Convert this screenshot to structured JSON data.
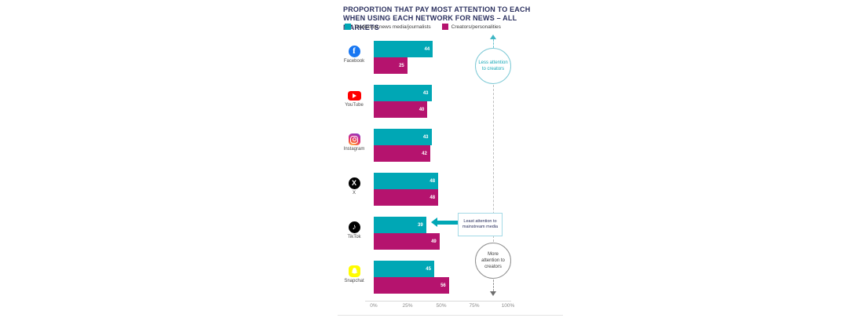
{
  "title": "PROPORTION THAT PAY MOST ATTENTION TO EACH WHEN USING EACH NETWORK FOR NEWS – ALL MARKETS",
  "legend": {
    "items": [
      {
        "label": "Traditional news media/journalists",
        "color": "#00A7B5"
      },
      {
        "label": "Creators/personalities",
        "color": "#B5136E"
      }
    ]
  },
  "chart_data": {
    "type": "bar",
    "orientation": "horizontal",
    "title": "PROPORTION THAT PAY MOST ATTENTION TO EACH WHEN USING EACH NETWORK FOR NEWS – ALL MARKETS",
    "categories": [
      "Facebook",
      "YouTube",
      "Instagram",
      "X",
      "TikTok",
      "Snapchat"
    ],
    "icons": [
      "facebook-icon",
      "youtube-icon",
      "instagram-icon",
      "x-icon",
      "tiktok-icon",
      "snapchat-icon"
    ],
    "series": [
      {
        "name": "Traditional news media/journalists",
        "color": "#00A7B5",
        "values": [
          44,
          43,
          43,
          48,
          39,
          45
        ]
      },
      {
        "name": "Creators/personalities",
        "color": "#B5136E",
        "values": [
          25,
          40,
          42,
          48,
          49,
          56
        ]
      }
    ],
    "x_ticks": [
      "0%",
      "25%",
      "50%",
      "75%",
      "100%"
    ],
    "xlim": [
      0,
      100
    ],
    "grid": false,
    "legend_position": "top",
    "annotations": [
      {
        "id": "less-attention",
        "text": "Less attention to creators",
        "style": "teal dashed arrow up, circled"
      },
      {
        "id": "more-attention",
        "text": "More attention to creators",
        "style": "gray dashed arrow down, circled"
      },
      {
        "id": "least-attention",
        "text": "Least attention to mainstream media",
        "style": "teal arrow pointing left at TikTok traditional bar"
      }
    ]
  },
  "annotations": {
    "less": "Less attention to creators",
    "more": "More attention to creators",
    "least": "Least attention to mainstream media"
  }
}
